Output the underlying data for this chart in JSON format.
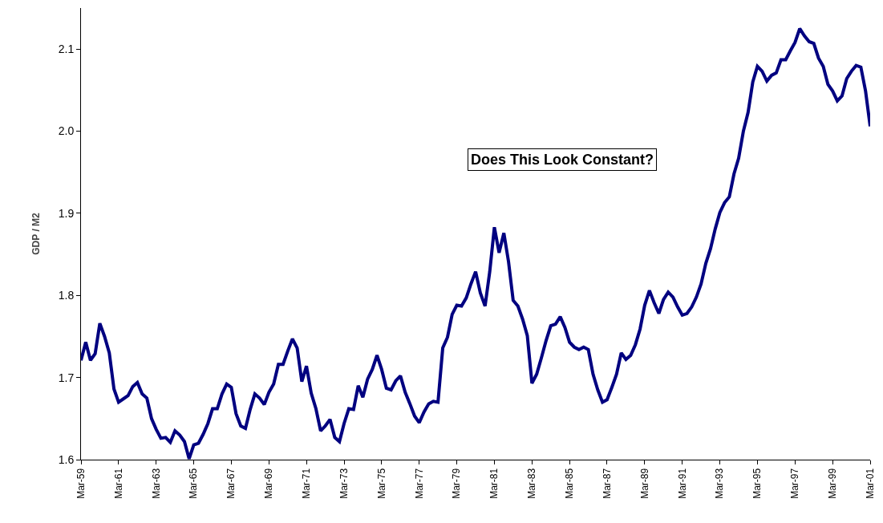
{
  "chart_data": {
    "type": "line",
    "ylabel": "GDP / M2",
    "annotations": [
      "Does This Look Constant?"
    ],
    "x": [
      "1959-03",
      "1959-06",
      "1959-09",
      "1959-12",
      "1960-03",
      "1960-06",
      "1960-09",
      "1960-12",
      "1961-03",
      "1961-06",
      "1961-09",
      "1961-12",
      "1962-03",
      "1962-06",
      "1962-09",
      "1962-12",
      "1963-03",
      "1963-06",
      "1963-09",
      "1963-12",
      "1964-03",
      "1964-06",
      "1964-09",
      "1964-12",
      "1965-03",
      "1965-06",
      "1965-09",
      "1965-12",
      "1966-03",
      "1966-06",
      "1966-09",
      "1966-12",
      "1967-03",
      "1967-06",
      "1967-09",
      "1967-12",
      "1968-03",
      "1968-06",
      "1968-09",
      "1968-12",
      "1969-03",
      "1969-06",
      "1969-09",
      "1969-12",
      "1970-03",
      "1970-06",
      "1970-09",
      "1970-12",
      "1971-03",
      "1971-06",
      "1971-09",
      "1971-12",
      "1972-03",
      "1972-06",
      "1972-09",
      "1972-12",
      "1973-03",
      "1973-06",
      "1973-09",
      "1973-12",
      "1974-03",
      "1974-06",
      "1974-09",
      "1974-12",
      "1975-03",
      "1975-06",
      "1975-09",
      "1975-12",
      "1976-03",
      "1976-06",
      "1976-09",
      "1976-12",
      "1977-03",
      "1977-06",
      "1977-09",
      "1977-12",
      "1978-03",
      "1978-06",
      "1978-09",
      "1978-12",
      "1979-03",
      "1979-06",
      "1979-09",
      "1979-12",
      "1980-03",
      "1980-06",
      "1980-09",
      "1980-12",
      "1981-03",
      "1981-06",
      "1981-09",
      "1981-12",
      "1982-03",
      "1982-06",
      "1982-09",
      "1982-12",
      "1983-03",
      "1983-06",
      "1983-09",
      "1983-12",
      "1984-03",
      "1984-06",
      "1984-09",
      "1984-12",
      "1985-03",
      "1985-06",
      "1985-09",
      "1985-12",
      "1986-03",
      "1986-06",
      "1986-09",
      "1986-12",
      "1987-03",
      "1987-06",
      "1987-09",
      "1987-12",
      "1988-03",
      "1988-06",
      "1988-09",
      "1988-12",
      "1989-03",
      "1989-06",
      "1989-09",
      "1989-12",
      "1990-03",
      "1990-06",
      "1990-09",
      "1990-12",
      "1991-03",
      "1991-06",
      "1991-09",
      "1991-12",
      "1992-03",
      "1992-06",
      "1992-09",
      "1992-12",
      "1993-03",
      "1993-06",
      "1993-09",
      "1993-12",
      "1994-03",
      "1994-06",
      "1994-09",
      "1994-12",
      "1995-03",
      "1995-06",
      "1995-09",
      "1995-12",
      "1996-03",
      "1996-06",
      "1996-09",
      "1996-12",
      "1997-03",
      "1997-06",
      "1997-09",
      "1997-12",
      "1998-03",
      "1998-06",
      "1998-09",
      "1998-12",
      "1999-03",
      "1999-06",
      "1999-09",
      "1999-12",
      "2000-03",
      "2000-06",
      "2000-09",
      "2000-12",
      "2001-03"
    ],
    "series": [
      {
        "color": "#000080",
        "values": [
          1.721,
          1.743,
          1.721,
          1.729,
          1.766,
          1.75,
          1.73,
          1.686,
          1.67,
          1.674,
          1.678,
          1.689,
          1.694,
          1.68,
          1.675,
          1.65,
          1.637,
          1.626,
          1.627,
          1.621,
          1.635,
          1.63,
          1.622,
          1.601,
          1.618,
          1.62,
          1.631,
          1.644,
          1.662,
          1.662,
          1.68,
          1.692,
          1.688,
          1.656,
          1.641,
          1.638,
          1.661,
          1.68,
          1.675,
          1.667,
          1.682,
          1.692,
          1.716,
          1.716,
          1.732,
          1.747,
          1.736,
          1.695,
          1.714,
          1.681,
          1.662,
          1.635,
          1.641,
          1.649,
          1.627,
          1.622,
          1.644,
          1.662,
          1.661,
          1.69,
          1.676,
          1.698,
          1.71,
          1.727,
          1.71,
          1.687,
          1.685,
          1.696,
          1.702,
          1.682,
          1.668,
          1.653,
          1.645,
          1.658,
          1.668,
          1.671,
          1.67,
          1.736,
          1.749,
          1.777,
          1.788,
          1.787,
          1.797,
          1.814,
          1.829,
          1.803,
          1.787,
          1.829,
          1.883,
          1.852,
          1.876,
          1.841,
          1.794,
          1.787,
          1.771,
          1.751,
          1.693,
          1.704,
          1.724,
          1.745,
          1.763,
          1.765,
          1.774,
          1.761,
          1.743,
          1.737,
          1.734,
          1.737,
          1.734,
          1.704,
          1.685,
          1.67,
          1.673,
          1.688,
          1.704,
          1.73,
          1.722,
          1.727,
          1.74,
          1.759,
          1.788,
          1.806,
          1.791,
          1.778,
          1.795,
          1.804,
          1.798,
          1.786,
          1.776,
          1.778,
          1.786,
          1.798,
          1.814,
          1.839,
          1.857,
          1.881,
          1.901,
          1.913,
          1.92,
          1.948,
          1.967,
          2.0,
          2.023,
          2.06,
          2.079,
          2.073,
          2.061,
          2.068,
          2.071,
          2.087,
          2.087,
          2.098,
          2.108,
          2.125,
          2.116,
          2.109,
          2.107,
          2.089,
          2.079,
          2.057,
          2.049,
          2.037,
          2.043,
          2.064,
          2.073,
          2.08,
          2.078,
          2.049,
          2.006
        ]
      }
    ],
    "xlim": [
      "1959-03",
      "2001-03"
    ],
    "xticks": [
      {
        "value": "1959-03",
        "label": "Mar-59"
      },
      {
        "value": "1961-03",
        "label": "Mar-61"
      },
      {
        "value": "1963-03",
        "label": "Mar-63"
      },
      {
        "value": "1965-03",
        "label": "Mar-65"
      },
      {
        "value": "1967-03",
        "label": "Mar-67"
      },
      {
        "value": "1969-03",
        "label": "Mar-69"
      },
      {
        "value": "1971-03",
        "label": "Mar-71"
      },
      {
        "value": "1973-03",
        "label": "Mar-73"
      },
      {
        "value": "1975-03",
        "label": "Mar-75"
      },
      {
        "value": "1977-03",
        "label": "Mar-77"
      },
      {
        "value": "1979-03",
        "label": "Mar-79"
      },
      {
        "value": "1981-03",
        "label": "Mar-81"
      },
      {
        "value": "1983-03",
        "label": "Mar-83"
      },
      {
        "value": "1985-03",
        "label": "Mar-85"
      },
      {
        "value": "1987-03",
        "label": "Mar-87"
      },
      {
        "value": "1989-03",
        "label": "Mar-89"
      },
      {
        "value": "1991-03",
        "label": "Mar-91"
      },
      {
        "value": "1993-03",
        "label": "Mar-93"
      },
      {
        "value": "1995-03",
        "label": "Mar-95"
      },
      {
        "value": "1997-03",
        "label": "Mar-97"
      },
      {
        "value": "1999-03",
        "label": "Mar-99"
      },
      {
        "value": "2001-03",
        "label": "Mar-01"
      }
    ],
    "ylim": [
      1.6,
      2.15
    ],
    "yticks": [
      1.6,
      1.7,
      1.8,
      1.9,
      {
        "value": 2,
        "label": "2.0"
      },
      2.1
    ],
    "grid": false,
    "legend": false,
    "marker": "none",
    "line_style": "solid"
  }
}
